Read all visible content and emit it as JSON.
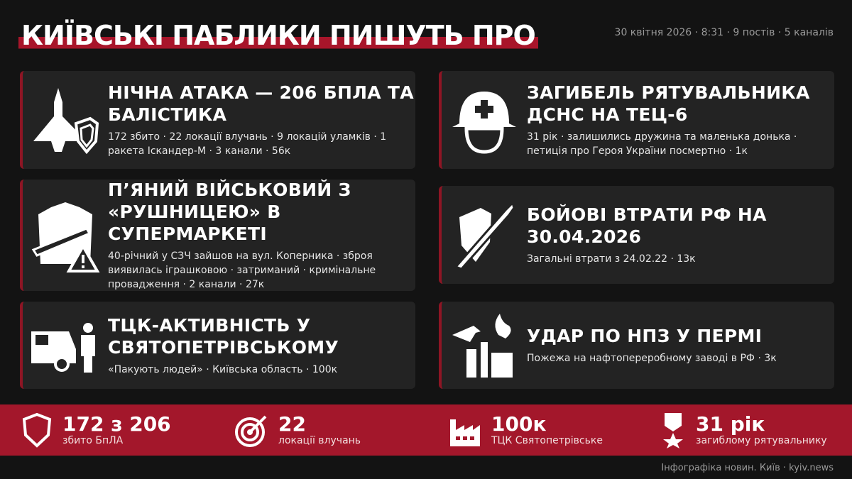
{
  "header": {
    "title": "КИЇВСЬКІ ПАБЛИКИ ПИШУТЬ ПРО",
    "meta": "30 квітня 2026 · 8:31 · 9 постів · 5 каналів"
  },
  "accent_color": "#a3172b",
  "cards": [
    {
      "icon": "drone-shield-icon",
      "title": "НІЧНА АТАКА — 206 БПЛА ТА БАЛІСТИКА",
      "desc": "172 збито · 22 локації влучань · 9 локацій уламків · 1 ракета Іскандер-М · 3 канали · 56к"
    },
    {
      "icon": "firefighter-helmet-icon",
      "title": "ЗАГИБЕЛЬ РЯТУВАЛЬНИКА ДСНС НА ТЕЦ-6",
      "desc": "31 рік · залишились дружина та маленька донька · петиція про Героя України посмертно · 1к"
    },
    {
      "icon": "soldier-rifle-warning-icon",
      "title": "П’ЯНИЙ ВІЙСЬКОВИЙ З «РУШНИЦЕЮ» В СУПЕРМАРКЕТІ",
      "desc": "40-річний у СЗЧ зайшов на вул. Коперника · зброя виявилась іграшковою · затриманий · кримінальне провадження · 2 канали · 27к"
    },
    {
      "icon": "shield-sword-icon",
      "title": "БОЙОВІ ВТРАТИ РФ НА 30.04.2026",
      "desc": "Загальні втрати з 24.02.22 · 13к"
    },
    {
      "icon": "van-detained-person-icon",
      "title": "ТЦК-АКТИВНІСТЬ У СВЯТОПЕТРІВСЬКОМУ",
      "desc": "«Пакують людей» · Київська область · 100к"
    },
    {
      "icon": "drone-refinery-fire-icon",
      "title": "УДАР ПО НПЗ У ПЕРМІ",
      "desc": "Пожежа на нафтопереробному заводі в РФ · 3к"
    }
  ],
  "stats": [
    {
      "icon": "shield-icon",
      "value": "172 з 206",
      "label": "збито БпЛА"
    },
    {
      "icon": "target-icon",
      "value": "22",
      "label": "локації влучань"
    },
    {
      "icon": "factory-icon",
      "value": "100к",
      "label": "ТЦК Святопетрівське"
    },
    {
      "icon": "medal-icon",
      "value": "31 рік",
      "label": "загиблому рятувальнику"
    }
  ],
  "footer": "Інфографіка новин. Київ · kyiv.news"
}
